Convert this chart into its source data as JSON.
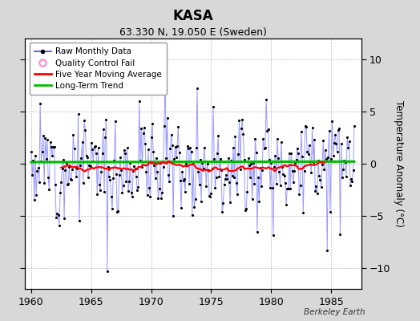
{
  "title": "KASA",
  "subtitle": "63.330 N, 19.050 E (Sweden)",
  "ylabel": "Temperature Anomaly (°C)",
  "credit": "Berkeley Earth",
  "xlim": [
    1959.5,
    1987.5
  ],
  "ylim": [
    -12,
    12
  ],
  "yticks": [
    -10,
    -5,
    0,
    5,
    10
  ],
  "xticks": [
    1960,
    1965,
    1970,
    1975,
    1980,
    1985
  ],
  "background_color": "#d8d8d8",
  "plot_bg_color": "#ffffff",
  "grid_color": "#bbbbcc",
  "line_color": "#8888ff",
  "marker_color": "#000000",
  "moving_avg_color": "#ff0000",
  "trend_color": "#00bb00",
  "seed": 12
}
